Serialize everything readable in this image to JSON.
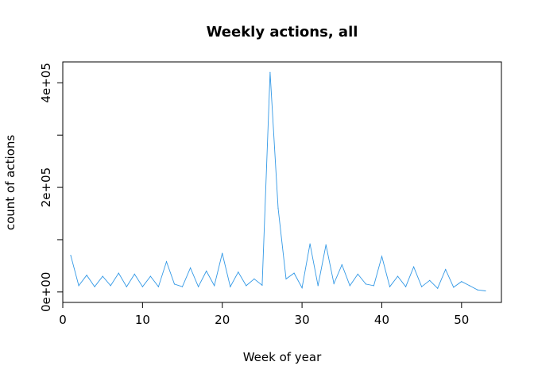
{
  "chart_data": {
    "type": "line",
    "title": "Weekly actions, all",
    "xlabel": "Week of year",
    "ylabel": "count of actions",
    "xlim": [
      0,
      55
    ],
    "ylim": [
      -20000,
      440000
    ],
    "x_ticks": [
      0,
      10,
      20,
      30,
      40,
      50
    ],
    "x_tick_labels": [
      "0",
      "10",
      "20",
      "30",
      "40",
      "50"
    ],
    "y_ticks": [
      0,
      100000,
      200000,
      300000,
      400000
    ],
    "y_tick_labels": [
      "0e+00",
      "",
      "2e+05",
      "",
      "4e+05"
    ],
    "grid": false,
    "color": "#3399e6",
    "x": [
      1,
      2,
      3,
      4,
      5,
      6,
      7,
      8,
      9,
      10,
      11,
      12,
      13,
      14,
      15,
      16,
      17,
      18,
      19,
      20,
      21,
      22,
      23,
      24,
      25,
      26,
      27,
      28,
      29,
      30,
      31,
      32,
      33,
      34,
      35,
      36,
      37,
      38,
      39,
      40,
      41,
      42,
      43,
      44,
      45,
      46,
      47,
      48,
      49,
      50,
      51,
      52,
      53
    ],
    "values": [
      70000,
      12000,
      32000,
      10000,
      30000,
      12000,
      36000,
      10000,
      34000,
      10000,
      30000,
      10000,
      58000,
      15000,
      10000,
      46000,
      10000,
      40000,
      12000,
      74000,
      10000,
      38000,
      12000,
      25000,
      13000,
      420000,
      160000,
      25000,
      36000,
      8000,
      92000,
      12000,
      90000,
      16000,
      52000,
      12000,
      34000,
      15000,
      12000,
      68000,
      10000,
      30000,
      10000,
      48000,
      10000,
      22000,
      7000,
      43000,
      9000,
      20000,
      12000,
      4000,
      2000
    ]
  }
}
